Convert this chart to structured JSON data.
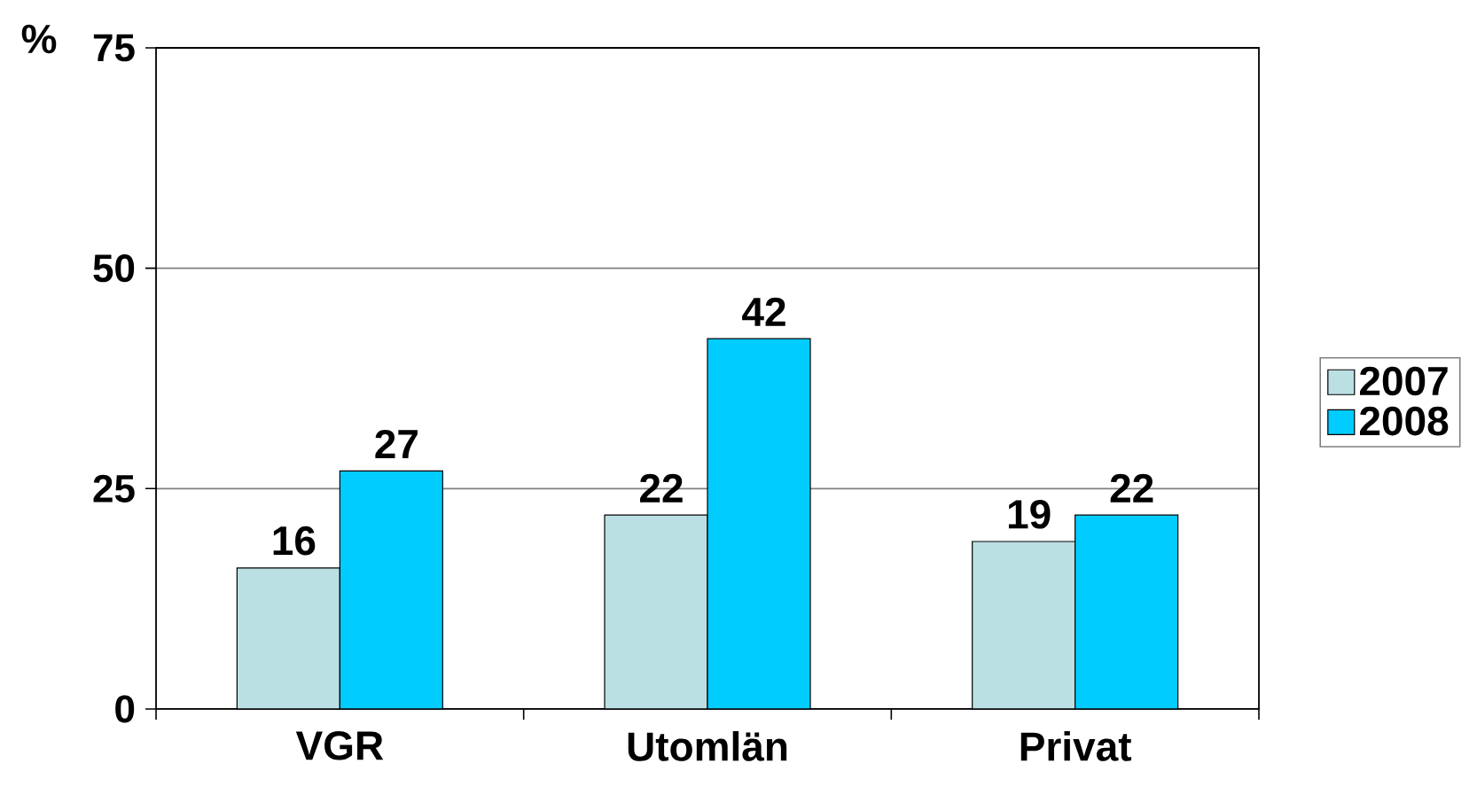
{
  "chart_data": {
    "type": "bar",
    "ylabel": "%",
    "categories": [
      "VGR",
      "Utomlän",
      "Privat"
    ],
    "series": [
      {
        "name": "2007",
        "color": "#bbe0e3",
        "values": [
          16,
          22,
          19
        ]
      },
      {
        "name": "2008",
        "color": "#00ccff",
        "values": [
          27,
          42,
          22
        ]
      }
    ],
    "ylim": [
      0,
      75
    ],
    "yticks": [
      0,
      25,
      50,
      75
    ],
    "grid": "y",
    "data_labels": true,
    "legend": "right"
  }
}
